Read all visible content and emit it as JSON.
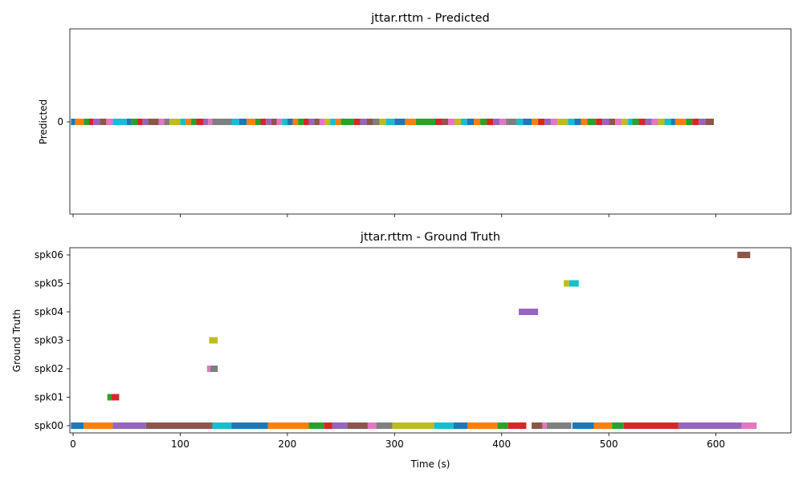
{
  "colors": [
    "#1f77b4",
    "#ff7f0e",
    "#2ca02c",
    "#d62728",
    "#9467bd",
    "#8c564b",
    "#e377c2",
    "#7f7f7f",
    "#bcbd22",
    "#17becf"
  ],
  "chart_data": [
    {
      "type": "timeline",
      "title": "jttar.rttm - Predicted",
      "ylabel": "Predicted",
      "xlabel": "",
      "xlim": [
        -3,
        670
      ],
      "xticks": [
        0,
        100,
        200,
        300,
        400,
        500,
        600
      ],
      "show_xtick_labels": false,
      "rows": [
        "0"
      ],
      "segments": [
        {
          "row": 0,
          "start": -2,
          "end": 2,
          "color": "#1f77b4"
        },
        {
          "row": 0,
          "start": 2,
          "end": 10,
          "color": "#ff7f0e"
        },
        {
          "row": 0,
          "start": 10,
          "end": 15,
          "color": "#2ca02c"
        },
        {
          "row": 0,
          "start": 15,
          "end": 19,
          "color": "#d62728"
        },
        {
          "row": 0,
          "start": 19,
          "end": 25,
          "color": "#9467bd"
        },
        {
          "row": 0,
          "start": 25,
          "end": 31,
          "color": "#8c564b"
        },
        {
          "row": 0,
          "start": 31,
          "end": 37,
          "color": "#e377c2"
        },
        {
          "row": 0,
          "start": 37,
          "end": 50,
          "color": "#17becf"
        },
        {
          "row": 0,
          "start": 50,
          "end": 54,
          "color": "#1f77b4"
        },
        {
          "row": 0,
          "start": 54,
          "end": 60,
          "color": "#2ca02c"
        },
        {
          "row": 0,
          "start": 60,
          "end": 65,
          "color": "#d62728"
        },
        {
          "row": 0,
          "start": 65,
          "end": 70,
          "color": "#9467bd"
        },
        {
          "row": 0,
          "start": 70,
          "end": 80,
          "color": "#8c564b"
        },
        {
          "row": 0,
          "start": 80,
          "end": 85,
          "color": "#e377c2"
        },
        {
          "row": 0,
          "start": 85,
          "end": 90,
          "color": "#7f7f7f"
        },
        {
          "row": 0,
          "start": 90,
          "end": 100,
          "color": "#bcbd22"
        },
        {
          "row": 0,
          "start": 100,
          "end": 105,
          "color": "#17becf"
        },
        {
          "row": 0,
          "start": 105,
          "end": 110,
          "color": "#ff7f0e"
        },
        {
          "row": 0,
          "start": 110,
          "end": 115,
          "color": "#2ca02c"
        },
        {
          "row": 0,
          "start": 115,
          "end": 122,
          "color": "#d62728"
        },
        {
          "row": 0,
          "start": 122,
          "end": 126,
          "color": "#9467bd"
        },
        {
          "row": 0,
          "start": 126,
          "end": 130,
          "color": "#e377c2"
        },
        {
          "row": 0,
          "start": 130,
          "end": 148,
          "color": "#7f7f7f"
        },
        {
          "row": 0,
          "start": 148,
          "end": 155,
          "color": "#17becf"
        },
        {
          "row": 0,
          "start": 155,
          "end": 162,
          "color": "#1f77b4"
        },
        {
          "row": 0,
          "start": 162,
          "end": 170,
          "color": "#ff7f0e"
        },
        {
          "row": 0,
          "start": 170,
          "end": 175,
          "color": "#2ca02c"
        },
        {
          "row": 0,
          "start": 175,
          "end": 180,
          "color": "#d62728"
        },
        {
          "row": 0,
          "start": 180,
          "end": 185,
          "color": "#9467bd"
        },
        {
          "row": 0,
          "start": 185,
          "end": 190,
          "color": "#8c564b"
        },
        {
          "row": 0,
          "start": 190,
          "end": 195,
          "color": "#e377c2"
        },
        {
          "row": 0,
          "start": 195,
          "end": 200,
          "color": "#17becf"
        },
        {
          "row": 0,
          "start": 200,
          "end": 205,
          "color": "#1f77b4"
        },
        {
          "row": 0,
          "start": 205,
          "end": 210,
          "color": "#ff7f0e"
        },
        {
          "row": 0,
          "start": 210,
          "end": 215,
          "color": "#2ca02c"
        },
        {
          "row": 0,
          "start": 215,
          "end": 220,
          "color": "#d62728"
        },
        {
          "row": 0,
          "start": 220,
          "end": 225,
          "color": "#9467bd"
        },
        {
          "row": 0,
          "start": 225,
          "end": 230,
          "color": "#8c564b"
        },
        {
          "row": 0,
          "start": 230,
          "end": 235,
          "color": "#e377c2"
        },
        {
          "row": 0,
          "start": 235,
          "end": 240,
          "color": "#bcbd22"
        },
        {
          "row": 0,
          "start": 240,
          "end": 245,
          "color": "#17becf"
        },
        {
          "row": 0,
          "start": 245,
          "end": 250,
          "color": "#ff7f0e"
        },
        {
          "row": 0,
          "start": 250,
          "end": 262,
          "color": "#2ca02c"
        },
        {
          "row": 0,
          "start": 262,
          "end": 268,
          "color": "#d62728"
        },
        {
          "row": 0,
          "start": 268,
          "end": 274,
          "color": "#9467bd"
        },
        {
          "row": 0,
          "start": 274,
          "end": 280,
          "color": "#8c564b"
        },
        {
          "row": 0,
          "start": 280,
          "end": 286,
          "color": "#7f7f7f"
        },
        {
          "row": 0,
          "start": 286,
          "end": 292,
          "color": "#bcbd22"
        },
        {
          "row": 0,
          "start": 292,
          "end": 300,
          "color": "#17becf"
        },
        {
          "row": 0,
          "start": 300,
          "end": 310,
          "color": "#1f77b4"
        },
        {
          "row": 0,
          "start": 310,
          "end": 320,
          "color": "#ff7f0e"
        },
        {
          "row": 0,
          "start": 320,
          "end": 338,
          "color": "#2ca02c"
        },
        {
          "row": 0,
          "start": 338,
          "end": 344,
          "color": "#d62728"
        },
        {
          "row": 0,
          "start": 344,
          "end": 350,
          "color": "#8c564b"
        },
        {
          "row": 0,
          "start": 350,
          "end": 356,
          "color": "#e377c2"
        },
        {
          "row": 0,
          "start": 356,
          "end": 362,
          "color": "#bcbd22"
        },
        {
          "row": 0,
          "start": 362,
          "end": 368,
          "color": "#17becf"
        },
        {
          "row": 0,
          "start": 368,
          "end": 374,
          "color": "#1f77b4"
        },
        {
          "row": 0,
          "start": 374,
          "end": 380,
          "color": "#ff7f0e"
        },
        {
          "row": 0,
          "start": 380,
          "end": 386,
          "color": "#2ca02c"
        },
        {
          "row": 0,
          "start": 386,
          "end": 392,
          "color": "#d62728"
        },
        {
          "row": 0,
          "start": 392,
          "end": 398,
          "color": "#9467bd"
        },
        {
          "row": 0,
          "start": 398,
          "end": 404,
          "color": "#e377c2"
        },
        {
          "row": 0,
          "start": 404,
          "end": 414,
          "color": "#7f7f7f"
        },
        {
          "row": 0,
          "start": 414,
          "end": 420,
          "color": "#17becf"
        },
        {
          "row": 0,
          "start": 420,
          "end": 428,
          "color": "#1f77b4"
        },
        {
          "row": 0,
          "start": 428,
          "end": 434,
          "color": "#ff7f0e"
        },
        {
          "row": 0,
          "start": 434,
          "end": 440,
          "color": "#d62728"
        },
        {
          "row": 0,
          "start": 440,
          "end": 446,
          "color": "#9467bd"
        },
        {
          "row": 0,
          "start": 446,
          "end": 452,
          "color": "#e377c2"
        },
        {
          "row": 0,
          "start": 452,
          "end": 462,
          "color": "#bcbd22"
        },
        {
          "row": 0,
          "start": 462,
          "end": 468,
          "color": "#17becf"
        },
        {
          "row": 0,
          "start": 468,
          "end": 474,
          "color": "#1f77b4"
        },
        {
          "row": 0,
          "start": 474,
          "end": 480,
          "color": "#ff7f0e"
        },
        {
          "row": 0,
          "start": 480,
          "end": 488,
          "color": "#2ca02c"
        },
        {
          "row": 0,
          "start": 488,
          "end": 494,
          "color": "#d62728"
        },
        {
          "row": 0,
          "start": 494,
          "end": 500,
          "color": "#9467bd"
        },
        {
          "row": 0,
          "start": 500,
          "end": 506,
          "color": "#8c564b"
        },
        {
          "row": 0,
          "start": 506,
          "end": 512,
          "color": "#e377c2"
        },
        {
          "row": 0,
          "start": 512,
          "end": 518,
          "color": "#bcbd22"
        },
        {
          "row": 0,
          "start": 518,
          "end": 522,
          "color": "#17becf"
        },
        {
          "row": 0,
          "start": 522,
          "end": 528,
          "color": "#2ca02c"
        },
        {
          "row": 0,
          "start": 528,
          "end": 534,
          "color": "#d62728"
        },
        {
          "row": 0,
          "start": 534,
          "end": 540,
          "color": "#9467bd"
        },
        {
          "row": 0,
          "start": 540,
          "end": 546,
          "color": "#e377c2"
        },
        {
          "row": 0,
          "start": 546,
          "end": 552,
          "color": "#bcbd22"
        },
        {
          "row": 0,
          "start": 552,
          "end": 558,
          "color": "#17becf"
        },
        {
          "row": 0,
          "start": 558,
          "end": 562,
          "color": "#1f77b4"
        },
        {
          "row": 0,
          "start": 562,
          "end": 572,
          "color": "#ff7f0e"
        },
        {
          "row": 0,
          "start": 572,
          "end": 578,
          "color": "#2ca02c"
        },
        {
          "row": 0,
          "start": 578,
          "end": 584,
          "color": "#d62728"
        },
        {
          "row": 0,
          "start": 584,
          "end": 590,
          "color": "#9467bd"
        },
        {
          "row": 0,
          "start": 590,
          "end": 598,
          "color": "#8c564b"
        }
      ]
    },
    {
      "type": "timeline",
      "title": "jttar.rttm - Ground Truth",
      "ylabel": "Ground Truth",
      "xlabel": "Time (s)",
      "xlim": [
        -3,
        670
      ],
      "xticks": [
        0,
        100,
        200,
        300,
        400,
        500,
        600
      ],
      "show_xtick_labels": true,
      "rows": [
        "spk00",
        "spk01",
        "spk02",
        "spk03",
        "spk04",
        "spk05",
        "spk06"
      ],
      "segments": [
        {
          "row": 0,
          "start": -2,
          "end": 10,
          "color": "#1f77b4"
        },
        {
          "row": 0,
          "start": 10,
          "end": 37,
          "color": "#ff7f0e"
        },
        {
          "row": 0,
          "start": 37,
          "end": 68,
          "color": "#9467bd"
        },
        {
          "row": 0,
          "start": 68,
          "end": 130,
          "color": "#8c564b"
        },
        {
          "row": 0,
          "start": 130,
          "end": 148,
          "color": "#17becf"
        },
        {
          "row": 0,
          "start": 148,
          "end": 182,
          "color": "#1f77b4"
        },
        {
          "row": 0,
          "start": 182,
          "end": 220,
          "color": "#ff7f0e"
        },
        {
          "row": 0,
          "start": 220,
          "end": 234,
          "color": "#2ca02c"
        },
        {
          "row": 0,
          "start": 234,
          "end": 242,
          "color": "#d62728"
        },
        {
          "row": 0,
          "start": 242,
          "end": 256,
          "color": "#9467bd"
        },
        {
          "row": 0,
          "start": 256,
          "end": 275,
          "color": "#8c564b"
        },
        {
          "row": 0,
          "start": 275,
          "end": 283,
          "color": "#e377c2"
        },
        {
          "row": 0,
          "start": 283,
          "end": 298,
          "color": "#7f7f7f"
        },
        {
          "row": 0,
          "start": 298,
          "end": 337,
          "color": "#bcbd22"
        },
        {
          "row": 0,
          "start": 337,
          "end": 355,
          "color": "#17becf"
        },
        {
          "row": 0,
          "start": 355,
          "end": 368,
          "color": "#1f77b4"
        },
        {
          "row": 0,
          "start": 368,
          "end": 396,
          "color": "#ff7f0e"
        },
        {
          "row": 0,
          "start": 396,
          "end": 406,
          "color": "#2ca02c"
        },
        {
          "row": 0,
          "start": 406,
          "end": 423,
          "color": "#d62728"
        },
        {
          "row": 0,
          "start": 428,
          "end": 438,
          "color": "#8c564b"
        },
        {
          "row": 0,
          "start": 438,
          "end": 442,
          "color": "#e377c2"
        },
        {
          "row": 0,
          "start": 442,
          "end": 465,
          "color": "#7f7f7f"
        },
        {
          "row": 0,
          "start": 466,
          "end": 486,
          "color": "#1f77b4"
        },
        {
          "row": 0,
          "start": 486,
          "end": 503,
          "color": "#ff7f0e"
        },
        {
          "row": 0,
          "start": 503,
          "end": 514,
          "color": "#2ca02c"
        },
        {
          "row": 0,
          "start": 514,
          "end": 565,
          "color": "#d62728"
        },
        {
          "row": 0,
          "start": 565,
          "end": 624,
          "color": "#9467bd"
        },
        {
          "row": 0,
          "start": 624,
          "end": 638,
          "color": "#e377c2"
        },
        {
          "row": 1,
          "start": 32,
          "end": 36,
          "color": "#2ca02c"
        },
        {
          "row": 1,
          "start": 36,
          "end": 43,
          "color": "#d62728"
        },
        {
          "row": 2,
          "start": 125,
          "end": 128,
          "color": "#e377c2"
        },
        {
          "row": 2,
          "start": 128,
          "end": 135,
          "color": "#7f7f7f"
        },
        {
          "row": 3,
          "start": 127,
          "end": 135,
          "color": "#bcbd22"
        },
        {
          "row": 4,
          "start": 416,
          "end": 434,
          "color": "#9467bd"
        },
        {
          "row": 5,
          "start": 458,
          "end": 463,
          "color": "#bcbd22"
        },
        {
          "row": 5,
          "start": 463,
          "end": 472,
          "color": "#17becf"
        },
        {
          "row": 6,
          "start": 620,
          "end": 632,
          "color": "#8c564b"
        }
      ]
    }
  ]
}
